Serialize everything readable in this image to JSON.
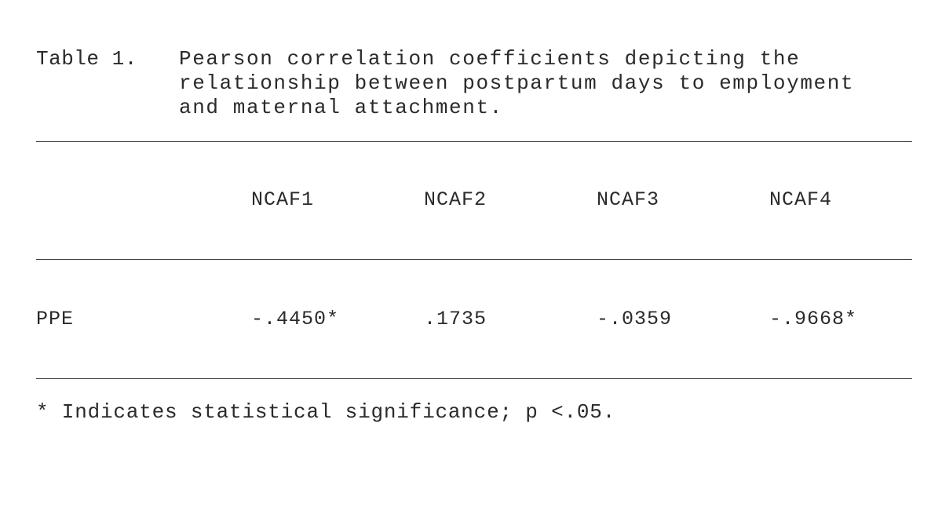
{
  "caption": {
    "label": "Table 1.",
    "lines": [
      "Pearson correlation coefficients depicting the",
      "relationship between postpartum days to employment",
      "and maternal attachment."
    ]
  },
  "table": {
    "columns": [
      "",
      "NCAF1",
      "NCAF2",
      "NCAF3",
      "NCAF4"
    ],
    "rows": [
      {
        "label": "PPE",
        "values": [
          "-.4450*",
          ".1735",
          "-.0359",
          "-.9668*"
        ]
      }
    ]
  },
  "footnote": "* Indicates statistical significance; p <.05."
}
